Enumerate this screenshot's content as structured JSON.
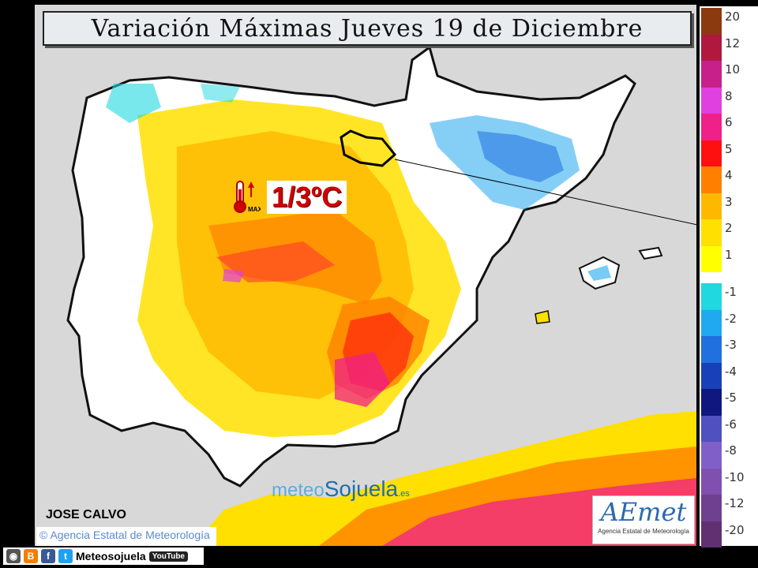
{
  "title": "Variación Máximas Jueves 19 de Diciembre",
  "highlight": {
    "value": "1/3ºC",
    "icon_label": "MAX",
    "region": "La Rioja"
  },
  "author": "JOSE CALVO",
  "agency_credit": "Agencia Estatal de Meteorología",
  "watermark": {
    "part1": "meteo",
    "part2": "Sojuela",
    "part3": ".es"
  },
  "logo": {
    "name": "AEmet",
    "subtitle": "Agencia Estatal de Meteorología"
  },
  "social": {
    "name": "Meteosojuela",
    "youtube": "YouTube"
  },
  "legend": [
    {
      "label": "20",
      "color": "#8b3a10"
    },
    {
      "label": "12",
      "color": "#b01840"
    },
    {
      "label": "10",
      "color": "#c8208a"
    },
    {
      "label": "8",
      "color": "#e040e0"
    },
    {
      "label": "6",
      "color": "#f0208a"
    },
    {
      "label": "5",
      "color": "#ff1010"
    },
    {
      "label": "4",
      "color": "#ff8000"
    },
    {
      "label": "3",
      "color": "#ffb800"
    },
    {
      "label": "2",
      "color": "#ffe000"
    },
    {
      "label": "1",
      "color": "#ffff00"
    },
    {
      "label": "-1",
      "color": "#20d8e0"
    },
    {
      "label": "-2",
      "color": "#20a8f0"
    },
    {
      "label": "-3",
      "color": "#2070e0"
    },
    {
      "label": "-4",
      "color": "#1840b8"
    },
    {
      "label": "-5",
      "color": "#101880"
    },
    {
      "label": "-6",
      "color": "#5050c0"
    },
    {
      "label": "-8",
      "color": "#8060c8"
    },
    {
      "label": "-10",
      "color": "#8050b0"
    },
    {
      "label": "-12",
      "color": "#704090"
    },
    {
      "label": "-20",
      "color": "#603070"
    }
  ]
}
